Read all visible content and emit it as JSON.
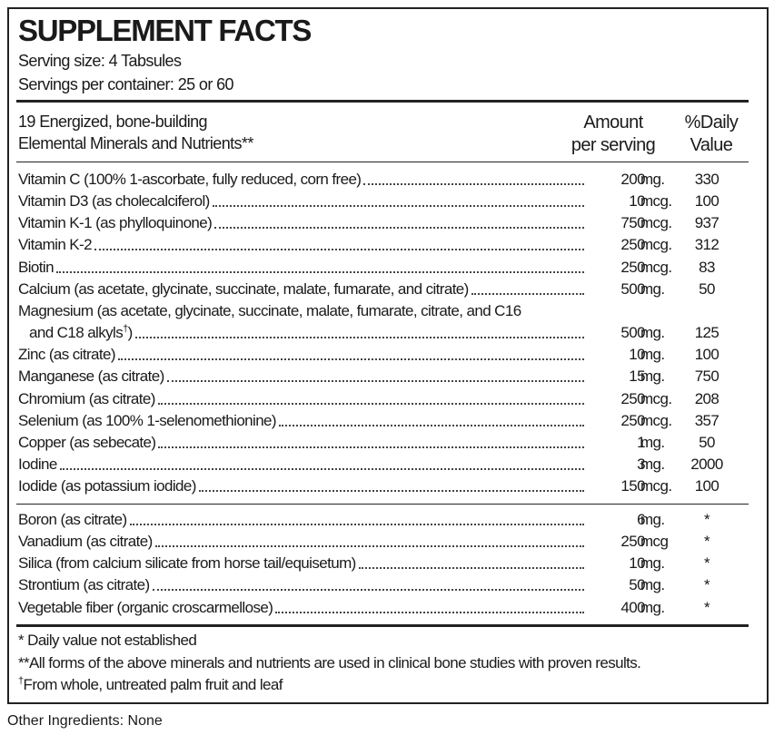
{
  "header": {
    "title": "SUPPLEMENT FACTS",
    "serving_size": "Serving size: 4 Tabsules",
    "servings_per_container": "Servings per container: 25 or 60"
  },
  "columns": {
    "description": [
      "19 Energized, bone-building",
      "Elemental Minerals and Nutrients**"
    ],
    "amount": [
      "Amount",
      "per serving"
    ],
    "daily_value": [
      "%Daily",
      "Value"
    ]
  },
  "groups": [
    {
      "rows": [
        {
          "name": "Vitamin C (100% 1-ascorbate, fully reduced, corn free)",
          "amount": 200,
          "unit": "mg.",
          "daily_value": 330
        },
        {
          "name": "Vitamin D3 (as cholecalciferol)",
          "amount": 10,
          "unit": "mcg.",
          "daily_value": 100
        },
        {
          "name": "Vitamin K-1 (as phylloquinone)",
          "amount": 750,
          "unit": "mcg.",
          "daily_value": 937
        },
        {
          "name": "Vitamin K-2",
          "amount": 250,
          "unit": "mcg.",
          "daily_value": 312
        },
        {
          "name": "Biotin",
          "amount": 250,
          "unit": "mcg.",
          "daily_value": 83
        },
        {
          "name": "Calcium (as acetate, glycinate, succinate, malate, fumarate, and citrate)",
          "amount": 500,
          "unit": "mg.",
          "daily_value": 50
        },
        {
          "name": [
            "Magnesium (as acetate, glycinate, succinate, malate, fumarate, citrate, and C16",
            "and C18 alkyls"
          ],
          "superscript": "†",
          "suffix": ")",
          "amount": 500,
          "unit": "mg.",
          "daily_value": 125
        },
        {
          "name": "Zinc (as citrate)",
          "amount": 10,
          "unit": "mg.",
          "daily_value": 100
        },
        {
          "name": "Manganese (as citrate)",
          "amount": 15,
          "unit": "mg.",
          "daily_value": 750
        },
        {
          "name": "Chromium (as citrate)",
          "amount": 250,
          "unit": "mcg.",
          "daily_value": 208
        },
        {
          "name": "Selenium (as 100% 1-selenomethionine)",
          "amount": 250,
          "unit": "mcg.",
          "daily_value": 357
        },
        {
          "name": "Copper (as sebecate)",
          "amount": 1,
          "unit": "mg.",
          "daily_value": 50
        },
        {
          "name": "Iodine",
          "amount": 3,
          "unit": "mg.",
          "daily_value": 2000
        },
        {
          "name": "Iodide (as potassium iodide)",
          "amount": 150,
          "unit": "mcg.",
          "daily_value": 100
        }
      ]
    },
    {
      "rows": [
        {
          "name": "Boron (as citrate)",
          "amount": 6,
          "unit": "mg.",
          "daily_value": "*"
        },
        {
          "name": "Vanadium (as citrate)",
          "amount": 250,
          "unit": "mcg",
          "daily_value": "*"
        },
        {
          "name": "Silica (from calcium silicate from horse tail/equisetum)",
          "amount": 10,
          "unit": "mg.",
          "daily_value": "*"
        },
        {
          "name": "Strontium (as citrate)",
          "amount": 50,
          "unit": "mg.",
          "daily_value": "*"
        },
        {
          "name": "Vegetable fiber (organic croscarmellose)",
          "amount": 400,
          "unit": "mg.",
          "daily_value": "*"
        }
      ]
    }
  ],
  "footnotes": [
    {
      "text": "* Daily value not established"
    },
    {
      "text": "**All forms of the above minerals and nutrients are used in clinical bone studies with proven results."
    },
    {
      "mark": "†",
      "text": "From whole, untreated palm fruit and leaf"
    }
  ],
  "other_ingredients": "Other Ingredients: None"
}
